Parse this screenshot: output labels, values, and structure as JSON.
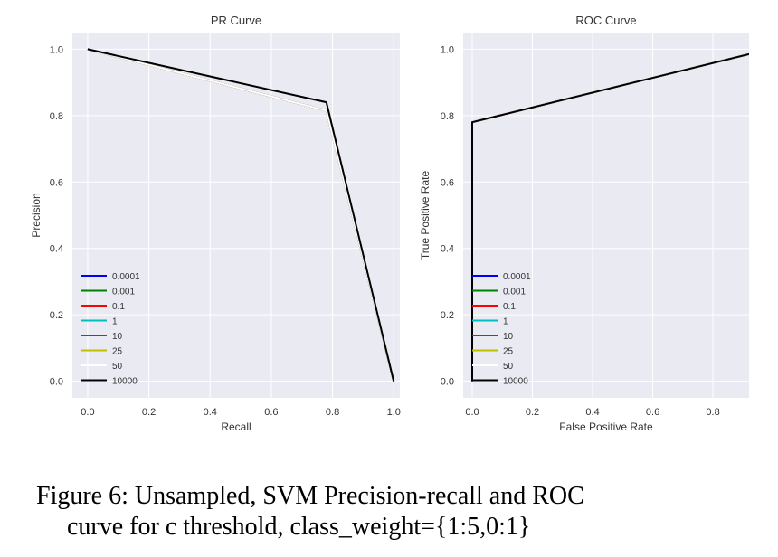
{
  "chart_data": [
    {
      "type": "line",
      "title": "PR Curve",
      "xlabel": "Recall",
      "ylabel": "Precision",
      "xlim": [
        -0.05,
        1.02
      ],
      "ylim": [
        -0.05,
        1.05
      ],
      "xticks": [
        "0.0",
        "0.2",
        "0.4",
        "0.6",
        "0.8",
        "1.0"
      ],
      "yticks": [
        "0.0",
        "0.2",
        "0.4",
        "0.6",
        "0.8",
        "1.0"
      ],
      "grid": true,
      "legend_position": "lower-left",
      "series": [
        {
          "name": "0.0001",
          "color": "#0000ff",
          "x": [
            0.0,
            0.78,
            1.0
          ],
          "y": [
            1.0,
            0.815,
            0.0
          ]
        },
        {
          "name": "0.001",
          "color": "#008000",
          "x": [
            0.0,
            0.78,
            1.0
          ],
          "y": [
            1.0,
            0.815,
            0.0
          ]
        },
        {
          "name": "0.1",
          "color": "#ff0000",
          "x": [
            0.0,
            0.78,
            1.0
          ],
          "y": [
            1.0,
            0.815,
            0.0
          ]
        },
        {
          "name": "1",
          "color": "#00bfbf",
          "x": [
            0.0,
            0.78,
            1.0
          ],
          "y": [
            1.0,
            0.815,
            0.0
          ]
        },
        {
          "name": "10",
          "color": "#bf00bf",
          "x": [
            0.0,
            0.78,
            1.0
          ],
          "y": [
            1.0,
            0.815,
            0.0
          ]
        },
        {
          "name": "25",
          "color": "#bfbf00",
          "x": [
            0.0,
            0.78,
            1.0
          ],
          "y": [
            1.0,
            0.815,
            0.0
          ]
        },
        {
          "name": "50",
          "color": "#ffffff",
          "x": [
            0.0,
            0.78,
            1.0
          ],
          "y": [
            1.0,
            0.815,
            0.0
          ]
        },
        {
          "name": "10000",
          "color": "#000000",
          "x": [
            0.0,
            0.78,
            1.0
          ],
          "y": [
            1.0,
            0.84,
            0.0
          ]
        }
      ]
    },
    {
      "type": "line",
      "title": "ROC Curve",
      "xlabel": "False Positive Rate",
      "ylabel": "True Positive Rate",
      "xlim": [
        -0.03,
        0.92
      ],
      "ylim": [
        -0.05,
        1.05
      ],
      "xticks": [
        "0.0",
        "0.2",
        "0.4",
        "0.6",
        "0.8"
      ],
      "yticks": [
        "0.0",
        "0.2",
        "0.4",
        "0.6",
        "0.8",
        "1.0"
      ],
      "grid": true,
      "legend_position": "lower-left",
      "series": [
        {
          "name": "0.0001",
          "color": "#0000ff",
          "x": [
            0.0,
            0.0,
            0.0,
            0.92
          ],
          "y": [
            0.0,
            0.78,
            0.78,
            0.985
          ]
        },
        {
          "name": "0.001",
          "color": "#008000",
          "x": [
            0.0,
            0.0,
            0.0,
            0.92
          ],
          "y": [
            0.0,
            0.78,
            0.78,
            0.985
          ]
        },
        {
          "name": "0.1",
          "color": "#ff0000",
          "x": [
            0.0,
            0.0,
            0.0,
            0.92
          ],
          "y": [
            0.0,
            0.78,
            0.78,
            0.985
          ]
        },
        {
          "name": "1",
          "color": "#00bfbf",
          "x": [
            0.0,
            0.0,
            0.0,
            0.92
          ],
          "y": [
            0.0,
            0.78,
            0.78,
            0.985
          ]
        },
        {
          "name": "10",
          "color": "#bf00bf",
          "x": [
            0.0,
            0.0,
            0.0,
            0.92
          ],
          "y": [
            0.0,
            0.78,
            0.78,
            0.985
          ]
        },
        {
          "name": "25",
          "color": "#bfbf00",
          "x": [
            0.0,
            0.0,
            0.0,
            0.92
          ],
          "y": [
            0.0,
            0.78,
            0.78,
            0.985
          ]
        },
        {
          "name": "50",
          "color": "#ffffff",
          "x": [
            0.0,
            0.0,
            0.0,
            0.92
          ],
          "y": [
            0.0,
            0.78,
            0.78,
            0.985
          ]
        },
        {
          "name": "10000",
          "color": "#000000",
          "x": [
            0.0,
            0.0,
            0.0,
            0.92
          ],
          "y": [
            0.0,
            0.78,
            0.78,
            0.985
          ]
        }
      ]
    }
  ],
  "caption": {
    "line1": "Figure 6: Unsampled, SVM Precision-recall and ROC",
    "line2": "curve for c threshold, class_weight={1:5,0:1}"
  },
  "style": {
    "plot_bg": "#eaeaf2",
    "grid_color": "#ffffff"
  }
}
